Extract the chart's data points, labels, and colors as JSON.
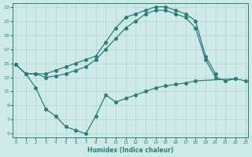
{
  "xlabel": "Humidex (Indice chaleur)",
  "bg_color": "#cdeae7",
  "line_color": "#2d7d7d",
  "grid_color": "#b8d8d5",
  "xlim": [
    -0.3,
    23.3
  ],
  "ylim": [
    4.5,
    23.5
  ],
  "xticks": [
    0,
    1,
    2,
    3,
    4,
    5,
    6,
    7,
    8,
    9,
    10,
    11,
    12,
    13,
    14,
    15,
    16,
    17,
    18,
    19,
    20,
    21,
    22,
    23
  ],
  "yticks": [
    5,
    7,
    9,
    11,
    13,
    15,
    17,
    19,
    21,
    23
  ],
  "curve_A_x": [
    0,
    1,
    2,
    3,
    4,
    5,
    6,
    7,
    8,
    9,
    10,
    11,
    12,
    13,
    14,
    15,
    16,
    17,
    18,
    19,
    20
  ],
  "curve_A_y": [
    14.8,
    13.5,
    13.5,
    13.5,
    14.0,
    14.5,
    15.0,
    15.5,
    16.0,
    18.0,
    20.0,
    21.5,
    22.0,
    22.5,
    23.0,
    23.0,
    22.5,
    22.0,
    21.0,
    16.0,
    13.5
  ],
  "curve_B_x": [
    0,
    1,
    2,
    3,
    4,
    5,
    6,
    7,
    8,
    9,
    10,
    11,
    12,
    13,
    14,
    15,
    16,
    17,
    18,
    19,
    20,
    21,
    22
  ],
  "curve_B_y": [
    14.8,
    13.5,
    13.5,
    13.0,
    13.2,
    13.5,
    14.0,
    14.5,
    15.5,
    17.0,
    18.5,
    20.0,
    21.0,
    22.0,
    22.5,
    22.5,
    22.0,
    21.5,
    20.0,
    15.5,
    13.0,
    12.5,
    12.8
  ],
  "curve_C_x": [
    0,
    1,
    2,
    3,
    4,
    5,
    6,
    7,
    8,
    9,
    10,
    11,
    12,
    13,
    14,
    15,
    16,
    17,
    18,
    22,
    23
  ],
  "curve_C_y": [
    14.8,
    13.5,
    11.5,
    8.5,
    7.5,
    6.0,
    5.5,
    5.0,
    7.5,
    10.5,
    9.5,
    10.0,
    10.5,
    11.0,
    11.5,
    11.8,
    12.0,
    12.2,
    12.5,
    12.8,
    12.5
  ]
}
